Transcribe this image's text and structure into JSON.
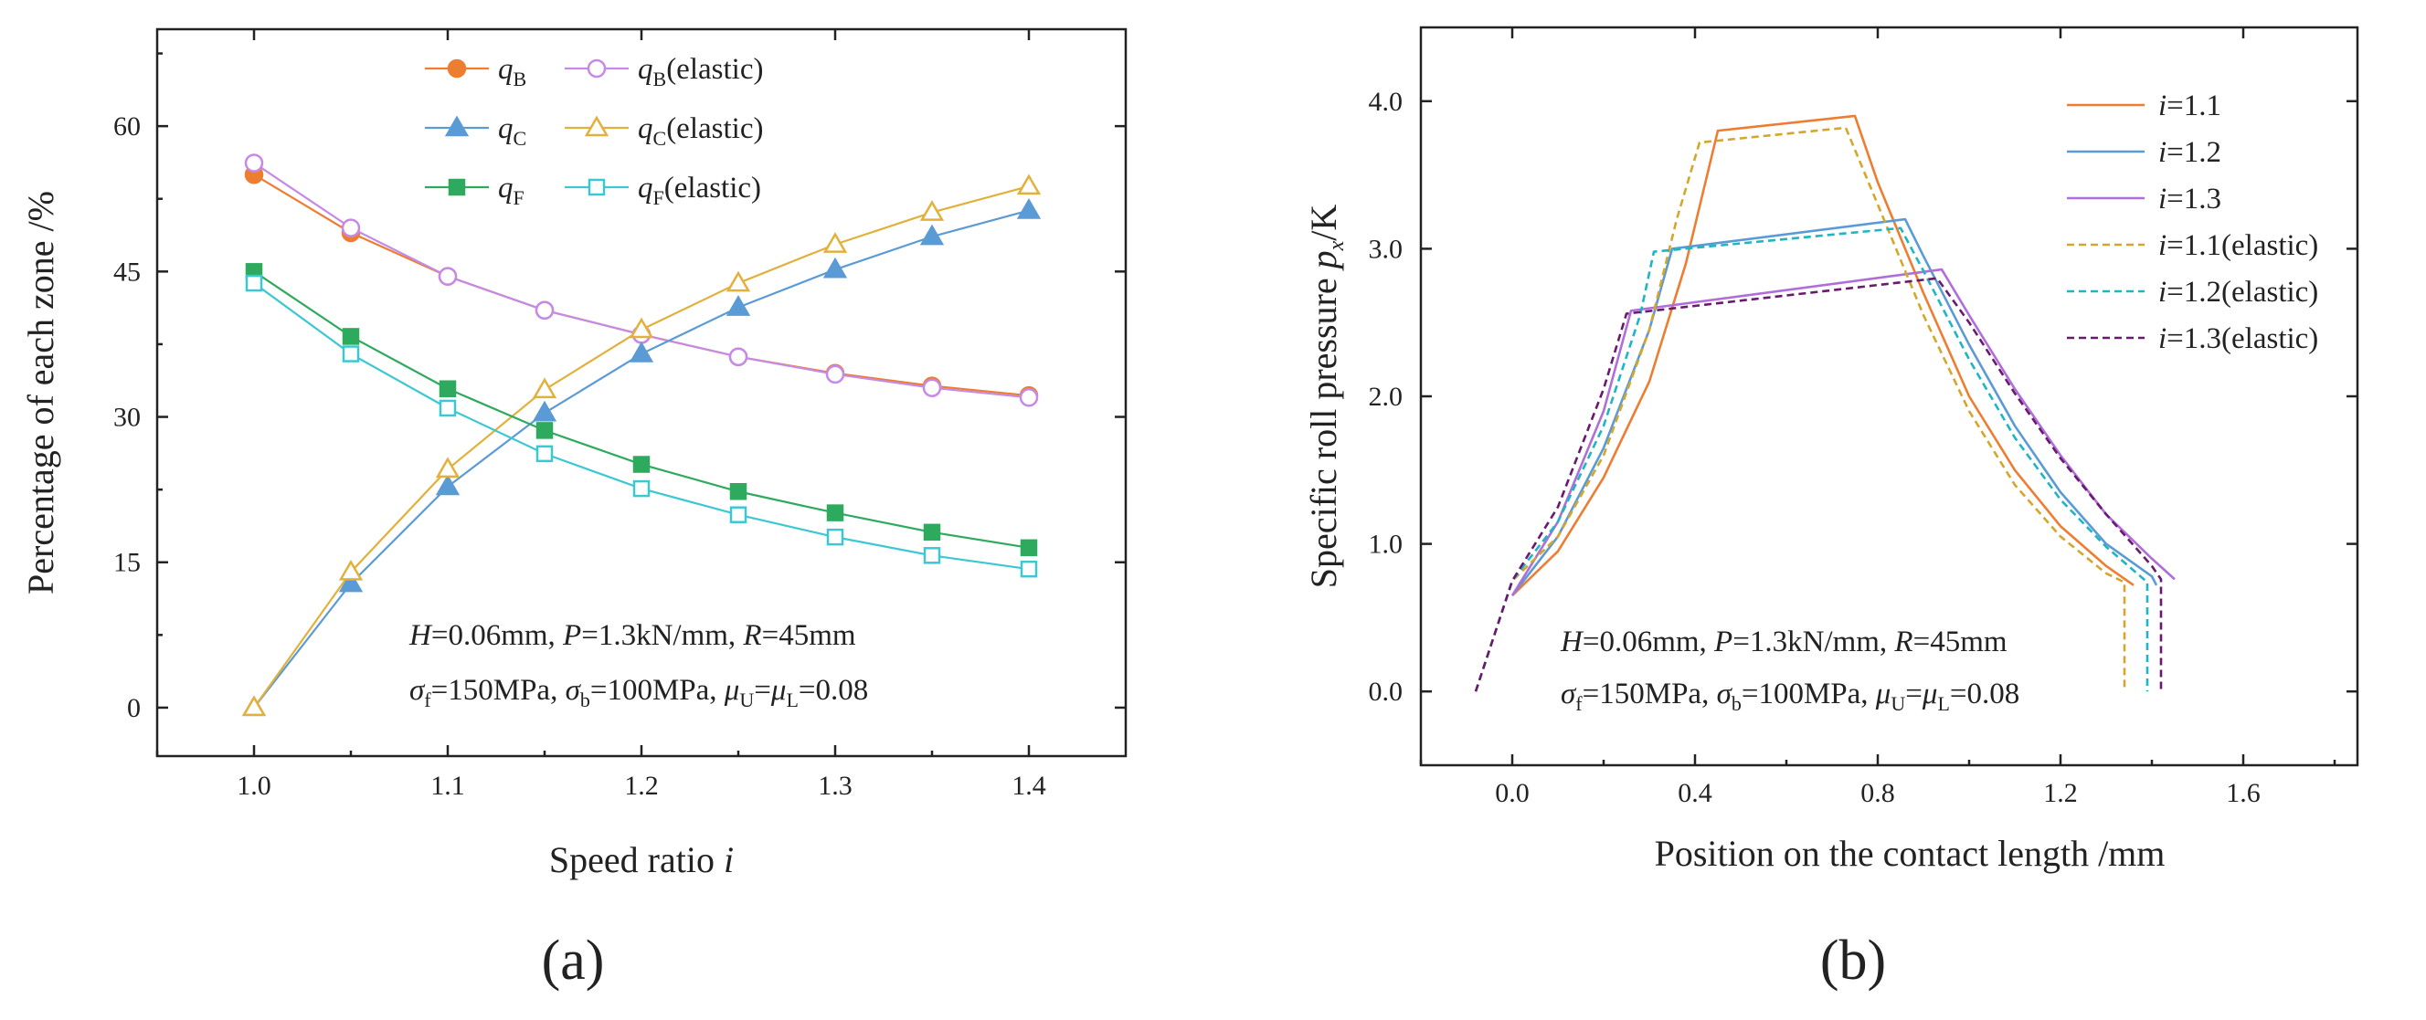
{
  "chart_data": [
    {
      "type": "line",
      "panel_label": "(a)",
      "ylabel": "Percentage of each zone /%",
      "xlabel_main": "Speed ratio ",
      "xlabel_var": "i",
      "xlim": [
        0.95,
        1.45
      ],
      "ylim": [
        -5,
        70
      ],
      "xticks": [
        1.0,
        1.1,
        1.2,
        1.3,
        1.4
      ],
      "xtick_labels": [
        "1.0",
        "1.1",
        "1.2",
        "1.3",
        "1.4"
      ],
      "yticks": [
        0,
        15,
        30,
        45,
        60
      ],
      "ytick_labels": [
        "0",
        "15",
        "30",
        "45",
        "60"
      ],
      "annotation_line1": "H=0.06mm, P=1.3kN/mm, R=45mm",
      "annotation_line2": "σf=150MPa, σb=100MPa, μU=μL=0.08",
      "x": [
        1.0,
        1.05,
        1.1,
        1.15,
        1.2,
        1.25,
        1.3,
        1.35,
        1.4
      ],
      "series": [
        {
          "name": "qB",
          "base": "q",
          "sub": "B",
          "suffix": "",
          "color": "#ED7D31",
          "marker": "circle",
          "filled": true,
          "values": [
            55.0,
            49.0,
            44.5,
            41.0,
            38.5,
            36.2,
            34.5,
            33.2,
            32.2
          ]
        },
        {
          "name": "qB(elastic)",
          "base": "q",
          "sub": "B",
          "suffix": "(elastic)",
          "color": "#C58AE6",
          "marker": "circle",
          "filled": false,
          "values": [
            56.2,
            49.5,
            44.5,
            41.0,
            38.5,
            36.2,
            34.4,
            33.0,
            32.0
          ]
        },
        {
          "name": "qC",
          "base": "q",
          "sub": "C",
          "suffix": "",
          "color": "#5B9BD5",
          "marker": "triangle",
          "filled": true,
          "values": [
            0,
            12.8,
            22.8,
            30.4,
            36.5,
            41.3,
            45.2,
            48.6,
            51.3
          ]
        },
        {
          "name": "qC(elastic)",
          "base": "q",
          "sub": "C",
          "suffix": "(elastic)",
          "color": "#E2B13C",
          "marker": "triangle",
          "filled": false,
          "values": [
            0,
            14.0,
            24.6,
            32.8,
            39.0,
            43.8,
            47.8,
            51.1,
            53.8
          ]
        },
        {
          "name": "qF",
          "base": "q",
          "sub": "F",
          "suffix": "",
          "color": "#2EAA5E",
          "marker": "square",
          "filled": true,
          "values": [
            45.0,
            38.3,
            32.9,
            28.6,
            25.1,
            22.3,
            20.1,
            18.1,
            16.5
          ]
        },
        {
          "name": "qF(elastic)",
          "base": "q",
          "sub": "F",
          "suffix": "(elastic)",
          "color": "#3CC8D2",
          "marker": "square",
          "filled": false,
          "values": [
            43.8,
            36.5,
            30.9,
            26.2,
            22.6,
            19.9,
            17.6,
            15.7,
            14.3
          ]
        }
      ]
    },
    {
      "type": "line",
      "panel_label": "(b)",
      "ylabel_main": "Specific roll pressure ",
      "ylabel_var": "p",
      "ylabel_sub": "x",
      "ylabel_tail": "/K",
      "xlabel": "Position on the contact length /mm",
      "xlim": [
        -0.2,
        1.85
      ],
      "ylim": [
        -0.5,
        4.5
      ],
      "xticks": [
        0.0,
        0.4,
        0.8,
        1.2,
        1.6
      ],
      "xtick_labels": [
        "0.0",
        "0.4",
        "0.8",
        "1.2",
        "1.6"
      ],
      "yticks": [
        0,
        1,
        2,
        3,
        4
      ],
      "ytick_labels": [
        "0.0",
        "1.0",
        "2.0",
        "3.0",
        "4.0"
      ],
      "annotation_line1": "H=0.06mm, P=1.3kN/mm, R=45mm",
      "annotation_line2": "σf=150MPa, σb=100MPa, μU=μL=0.08",
      "series": [
        {
          "name": "i=1.1",
          "label": "=1.1",
          "color": "#ED7D31",
          "dashed": false,
          "points": [
            [
              0.0,
              0.65
            ],
            [
              0.1,
              0.95
            ],
            [
              0.2,
              1.45
            ],
            [
              0.3,
              2.1
            ],
            [
              0.38,
              2.9
            ],
            [
              0.45,
              3.8
            ],
            [
              0.75,
              3.9
            ],
            [
              0.8,
              3.45
            ],
            [
              0.9,
              2.7
            ],
            [
              1.0,
              2.0
            ],
            [
              1.1,
              1.5
            ],
            [
              1.2,
              1.12
            ],
            [
              1.3,
              0.85
            ],
            [
              1.36,
              0.72
            ]
          ]
        },
        {
          "name": "i=1.2",
          "label": "=1.2",
          "color": "#5B9BD5",
          "dashed": false,
          "points": [
            [
              0.0,
              0.65
            ],
            [
              0.1,
              1.05
            ],
            [
              0.2,
              1.65
            ],
            [
              0.3,
              2.45
            ],
            [
              0.35,
              3.0
            ],
            [
              0.86,
              3.2
            ],
            [
              0.9,
              2.95
            ],
            [
              1.0,
              2.35
            ],
            [
              1.1,
              1.8
            ],
            [
              1.2,
              1.35
            ],
            [
              1.3,
              1.0
            ],
            [
              1.4,
              0.78
            ],
            [
              1.41,
              0.72
            ]
          ]
        },
        {
          "name": "i=1.3",
          "label": "=1.3",
          "color": "#B06ED8",
          "dashed": false,
          "points": [
            [
              0.0,
              0.65
            ],
            [
              0.1,
              1.15
            ],
            [
              0.2,
              1.9
            ],
            [
              0.26,
              2.58
            ],
            [
              0.94,
              2.86
            ],
            [
              1.0,
              2.55
            ],
            [
              1.1,
              2.05
            ],
            [
              1.2,
              1.6
            ],
            [
              1.3,
              1.2
            ],
            [
              1.4,
              0.9
            ],
            [
              1.45,
              0.76
            ]
          ]
        },
        {
          "name": "i=1.1(elastic)",
          "label": "=1.1(elastic)",
          "color": "#D4A72C",
          "dashed": true,
          "points": [
            [
              -0.08,
              0.0
            ],
            [
              0.0,
              0.75
            ],
            [
              0.1,
              1.05
            ],
            [
              0.2,
              1.6
            ],
            [
              0.3,
              2.45
            ],
            [
              0.36,
              3.2
            ],
            [
              0.41,
              3.72
            ],
            [
              0.73,
              3.82
            ],
            [
              0.8,
              3.3
            ],
            [
              0.9,
              2.55
            ],
            [
              1.0,
              1.9
            ],
            [
              1.1,
              1.4
            ],
            [
              1.2,
              1.05
            ],
            [
              1.3,
              0.8
            ],
            [
              1.34,
              0.74
            ],
            [
              1.34,
              0.0
            ]
          ]
        },
        {
          "name": "i=1.2(elastic)",
          "label": "=1.2(elastic)",
          "color": "#1FB5C3",
          "dashed": true,
          "points": [
            [
              -0.08,
              0.0
            ],
            [
              0.0,
              0.75
            ],
            [
              0.1,
              1.15
            ],
            [
              0.2,
              1.8
            ],
            [
              0.28,
              2.55
            ],
            [
              0.31,
              2.98
            ],
            [
              0.85,
              3.14
            ],
            [
              0.9,
              2.85
            ],
            [
              1.0,
              2.25
            ],
            [
              1.1,
              1.72
            ],
            [
              1.2,
              1.3
            ],
            [
              1.3,
              0.98
            ],
            [
              1.39,
              0.74
            ],
            [
              1.39,
              0.0
            ]
          ]
        },
        {
          "name": "i=1.3(elastic)",
          "label": "=1.3(elastic)",
          "color": "#6A1A6E",
          "dashed": true,
          "points": [
            [
              -0.08,
              0.0
            ],
            [
              0.0,
              0.75
            ],
            [
              0.1,
              1.25
            ],
            [
              0.2,
              2.05
            ],
            [
              0.25,
              2.56
            ],
            [
              0.93,
              2.8
            ],
            [
              1.0,
              2.5
            ],
            [
              1.1,
              2.02
            ],
            [
              1.2,
              1.58
            ],
            [
              1.3,
              1.2
            ],
            [
              1.4,
              0.85
            ],
            [
              1.42,
              0.76
            ],
            [
              1.42,
              0.0
            ]
          ]
        }
      ]
    }
  ]
}
